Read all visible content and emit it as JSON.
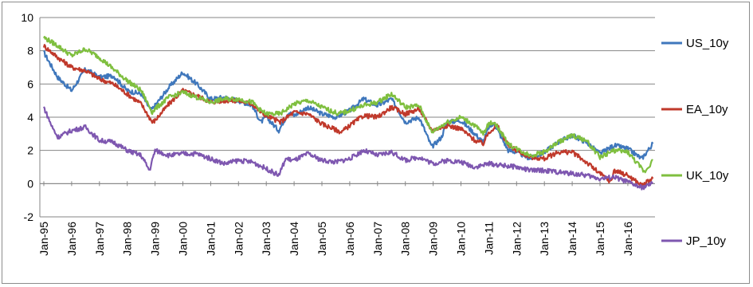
{
  "chart_data": {
    "type": "line",
    "title": "",
    "xlabel": "",
    "ylabel": "",
    "ylim": [
      -2,
      10
    ],
    "yticks": [
      -2,
      0,
      2,
      4,
      6,
      8,
      10
    ],
    "xtick_labels": [
      "Jan-95",
      "Jan-96",
      "Jan-97",
      "Jan-98",
      "Jan-99",
      "Jan-00",
      "Jan-01",
      "Jan-02",
      "Jan-03",
      "Jan-04",
      "Jan-05",
      "Jan-06",
      "Jan-07",
      "Jan-08",
      "Jan-09",
      "Jan-10",
      "Jan-11",
      "Jan-12",
      "Jan-13",
      "Jan-14",
      "Jan-15",
      "Jan-16"
    ],
    "grid": "horizontal",
    "legend_placement": "right",
    "x_unit": "year",
    "series": [
      {
        "name": "US_10y",
        "color": "#3f77bc",
        "points": [
          [
            1995.0,
            7.9
          ],
          [
            1995.5,
            6.4
          ],
          [
            1996.0,
            5.6
          ],
          [
            1996.5,
            6.9
          ],
          [
            1997.0,
            6.4
          ],
          [
            1997.5,
            6.5
          ],
          [
            1998.0,
            5.6
          ],
          [
            1998.5,
            5.4
          ],
          [
            1998.85,
            4.4
          ],
          [
            1999.0,
            4.7
          ],
          [
            1999.5,
            5.8
          ],
          [
            2000.0,
            6.7
          ],
          [
            2000.5,
            6.0
          ],
          [
            2001.0,
            5.1
          ],
          [
            2001.5,
            5.2
          ],
          [
            2002.0,
            5.0
          ],
          [
            2002.5,
            4.7
          ],
          [
            2002.8,
            3.7
          ],
          [
            2003.0,
            4.0
          ],
          [
            2003.45,
            3.2
          ],
          [
            2003.8,
            4.3
          ],
          [
            2004.0,
            4.1
          ],
          [
            2004.5,
            4.6
          ],
          [
            2005.0,
            4.2
          ],
          [
            2005.5,
            4.0
          ],
          [
            2006.0,
            4.4
          ],
          [
            2006.5,
            5.1
          ],
          [
            2007.0,
            4.7
          ],
          [
            2007.5,
            5.1
          ],
          [
            2008.0,
            3.7
          ],
          [
            2008.5,
            4.0
          ],
          [
            2008.95,
            2.2
          ],
          [
            2009.3,
            2.8
          ],
          [
            2009.5,
            3.7
          ],
          [
            2010.0,
            3.8
          ],
          [
            2010.5,
            3.0
          ],
          [
            2010.8,
            2.5
          ],
          [
            2011.0,
            3.4
          ],
          [
            2011.2,
            3.6
          ],
          [
            2011.7,
            2.0
          ],
          [
            2012.0,
            1.9
          ],
          [
            2012.5,
            1.5
          ],
          [
            2013.0,
            1.9
          ],
          [
            2013.5,
            2.5
          ],
          [
            2014.0,
            2.9
          ],
          [
            2014.5,
            2.5
          ],
          [
            2015.0,
            1.8
          ],
          [
            2015.5,
            2.3
          ],
          [
            2016.0,
            2.1
          ],
          [
            2016.5,
            1.5
          ],
          [
            2016.9,
            2.4
          ]
        ]
      },
      {
        "name": "EA_10y",
        "color": "#c0392b",
        "points": [
          [
            1995.0,
            8.3
          ],
          [
            1995.5,
            7.6
          ],
          [
            1996.0,
            7.0
          ],
          [
            1996.5,
            6.8
          ],
          [
            1997.0,
            6.3
          ],
          [
            1997.5,
            6.0
          ],
          [
            1998.0,
            5.4
          ],
          [
            1998.5,
            4.8
          ],
          [
            1998.9,
            3.7
          ],
          [
            1999.0,
            3.8
          ],
          [
            1999.5,
            4.8
          ],
          [
            2000.0,
            5.6
          ],
          [
            2000.5,
            5.3
          ],
          [
            2001.0,
            4.9
          ],
          [
            2001.5,
            5.0
          ],
          [
            2002.0,
            5.0
          ],
          [
            2002.5,
            4.8
          ],
          [
            2002.8,
            4.3
          ],
          [
            2003.0,
            4.1
          ],
          [
            2003.5,
            3.7
          ],
          [
            2004.0,
            4.3
          ],
          [
            2004.5,
            4.2
          ],
          [
            2005.0,
            3.6
          ],
          [
            2005.7,
            3.1
          ],
          [
            2006.0,
            3.5
          ],
          [
            2006.5,
            4.1
          ],
          [
            2007.0,
            4.0
          ],
          [
            2007.5,
            4.6
          ],
          [
            2008.0,
            4.2
          ],
          [
            2008.5,
            4.5
          ],
          [
            2008.95,
            3.2
          ],
          [
            2009.5,
            3.5
          ],
          [
            2010.0,
            3.3
          ],
          [
            2010.5,
            2.6
          ],
          [
            2010.8,
            2.4
          ],
          [
            2011.0,
            3.1
          ],
          [
            2011.3,
            3.5
          ],
          [
            2011.7,
            2.3
          ],
          [
            2012.0,
            2.0
          ],
          [
            2012.5,
            1.6
          ],
          [
            2013.0,
            1.5
          ],
          [
            2013.5,
            1.9
          ],
          [
            2014.0,
            1.9
          ],
          [
            2014.5,
            1.3
          ],
          [
            2015.0,
            0.6
          ],
          [
            2015.4,
            0.1
          ],
          [
            2015.5,
            0.8
          ],
          [
            2016.0,
            0.5
          ],
          [
            2016.5,
            -0.1
          ],
          [
            2016.9,
            0.3
          ]
        ]
      },
      {
        "name": "UK_10y",
        "color": "#7fbf3f",
        "points": [
          [
            1995.0,
            8.8
          ],
          [
            1995.5,
            8.3
          ],
          [
            1996.0,
            7.7
          ],
          [
            1996.5,
            8.1
          ],
          [
            1997.0,
            7.6
          ],
          [
            1997.5,
            6.9
          ],
          [
            1998.0,
            6.2
          ],
          [
            1998.5,
            5.6
          ],
          [
            1998.9,
            4.3
          ],
          [
            1999.0,
            4.5
          ],
          [
            1999.5,
            5.2
          ],
          [
            2000.0,
            5.5
          ],
          [
            2000.5,
            5.2
          ],
          [
            2001.0,
            4.9
          ],
          [
            2001.5,
            5.1
          ],
          [
            2002.0,
            5.1
          ],
          [
            2002.5,
            4.9
          ],
          [
            2002.8,
            4.4
          ],
          [
            2003.0,
            4.2
          ],
          [
            2003.5,
            4.2
          ],
          [
            2004.0,
            4.8
          ],
          [
            2004.5,
            5.0
          ],
          [
            2005.0,
            4.6
          ],
          [
            2005.6,
            4.2
          ],
          [
            2006.0,
            4.4
          ],
          [
            2006.5,
            4.7
          ],
          [
            2007.0,
            4.9
          ],
          [
            2007.5,
            5.4
          ],
          [
            2008.0,
            4.6
          ],
          [
            2008.5,
            4.7
          ],
          [
            2008.95,
            3.1
          ],
          [
            2009.5,
            3.7
          ],
          [
            2010.0,
            4.0
          ],
          [
            2010.5,
            3.5
          ],
          [
            2010.8,
            3.0
          ],
          [
            2011.0,
            3.6
          ],
          [
            2011.2,
            3.7
          ],
          [
            2011.7,
            2.4
          ],
          [
            2012.0,
            2.1
          ],
          [
            2012.5,
            1.7
          ],
          [
            2013.0,
            1.9
          ],
          [
            2013.5,
            2.5
          ],
          [
            2014.0,
            2.9
          ],
          [
            2014.5,
            2.6
          ],
          [
            2015.0,
            1.6
          ],
          [
            2015.5,
            2.0
          ],
          [
            2016.0,
            1.9
          ],
          [
            2016.5,
            0.9
          ],
          [
            2016.6,
            0.7
          ],
          [
            2016.9,
            1.4
          ]
        ]
      },
      {
        "name": "JP_10y",
        "color": "#7e57b0",
        "points": [
          [
            1995.0,
            4.6
          ],
          [
            1995.3,
            3.4
          ],
          [
            1995.5,
            2.8
          ],
          [
            1996.0,
            3.2
          ],
          [
            1996.5,
            3.4
          ],
          [
            1997.0,
            2.6
          ],
          [
            1997.5,
            2.5
          ],
          [
            1998.0,
            2.0
          ],
          [
            1998.5,
            1.7
          ],
          [
            1998.8,
            0.8
          ],
          [
            1999.0,
            2.0
          ],
          [
            1999.5,
            1.7
          ],
          [
            2000.0,
            1.8
          ],
          [
            2000.5,
            1.8
          ],
          [
            2001.0,
            1.5
          ],
          [
            2001.5,
            1.2
          ],
          [
            2002.0,
            1.4
          ],
          [
            2002.5,
            1.3
          ],
          [
            2003.0,
            0.9
          ],
          [
            2003.45,
            0.5
          ],
          [
            2003.7,
            1.5
          ],
          [
            2004.0,
            1.4
          ],
          [
            2004.5,
            1.8
          ],
          [
            2005.0,
            1.4
          ],
          [
            2005.5,
            1.3
          ],
          [
            2006.0,
            1.5
          ],
          [
            2006.5,
            2.0
          ],
          [
            2007.0,
            1.7
          ],
          [
            2007.5,
            1.9
          ],
          [
            2008.0,
            1.4
          ],
          [
            2008.5,
            1.6
          ],
          [
            2009.0,
            1.2
          ],
          [
            2009.5,
            1.4
          ],
          [
            2010.0,
            1.3
          ],
          [
            2010.5,
            1.0
          ],
          [
            2011.0,
            1.2
          ],
          [
            2011.5,
            1.1
          ],
          [
            2012.0,
            1.0
          ],
          [
            2012.5,
            0.8
          ],
          [
            2013.0,
            0.8
          ],
          [
            2013.5,
            0.7
          ],
          [
            2014.0,
            0.6
          ],
          [
            2014.5,
            0.5
          ],
          [
            2015.0,
            0.3
          ],
          [
            2015.5,
            0.4
          ],
          [
            2016.0,
            0.1
          ],
          [
            2016.5,
            -0.25
          ],
          [
            2016.9,
            0.0
          ]
        ]
      }
    ]
  }
}
